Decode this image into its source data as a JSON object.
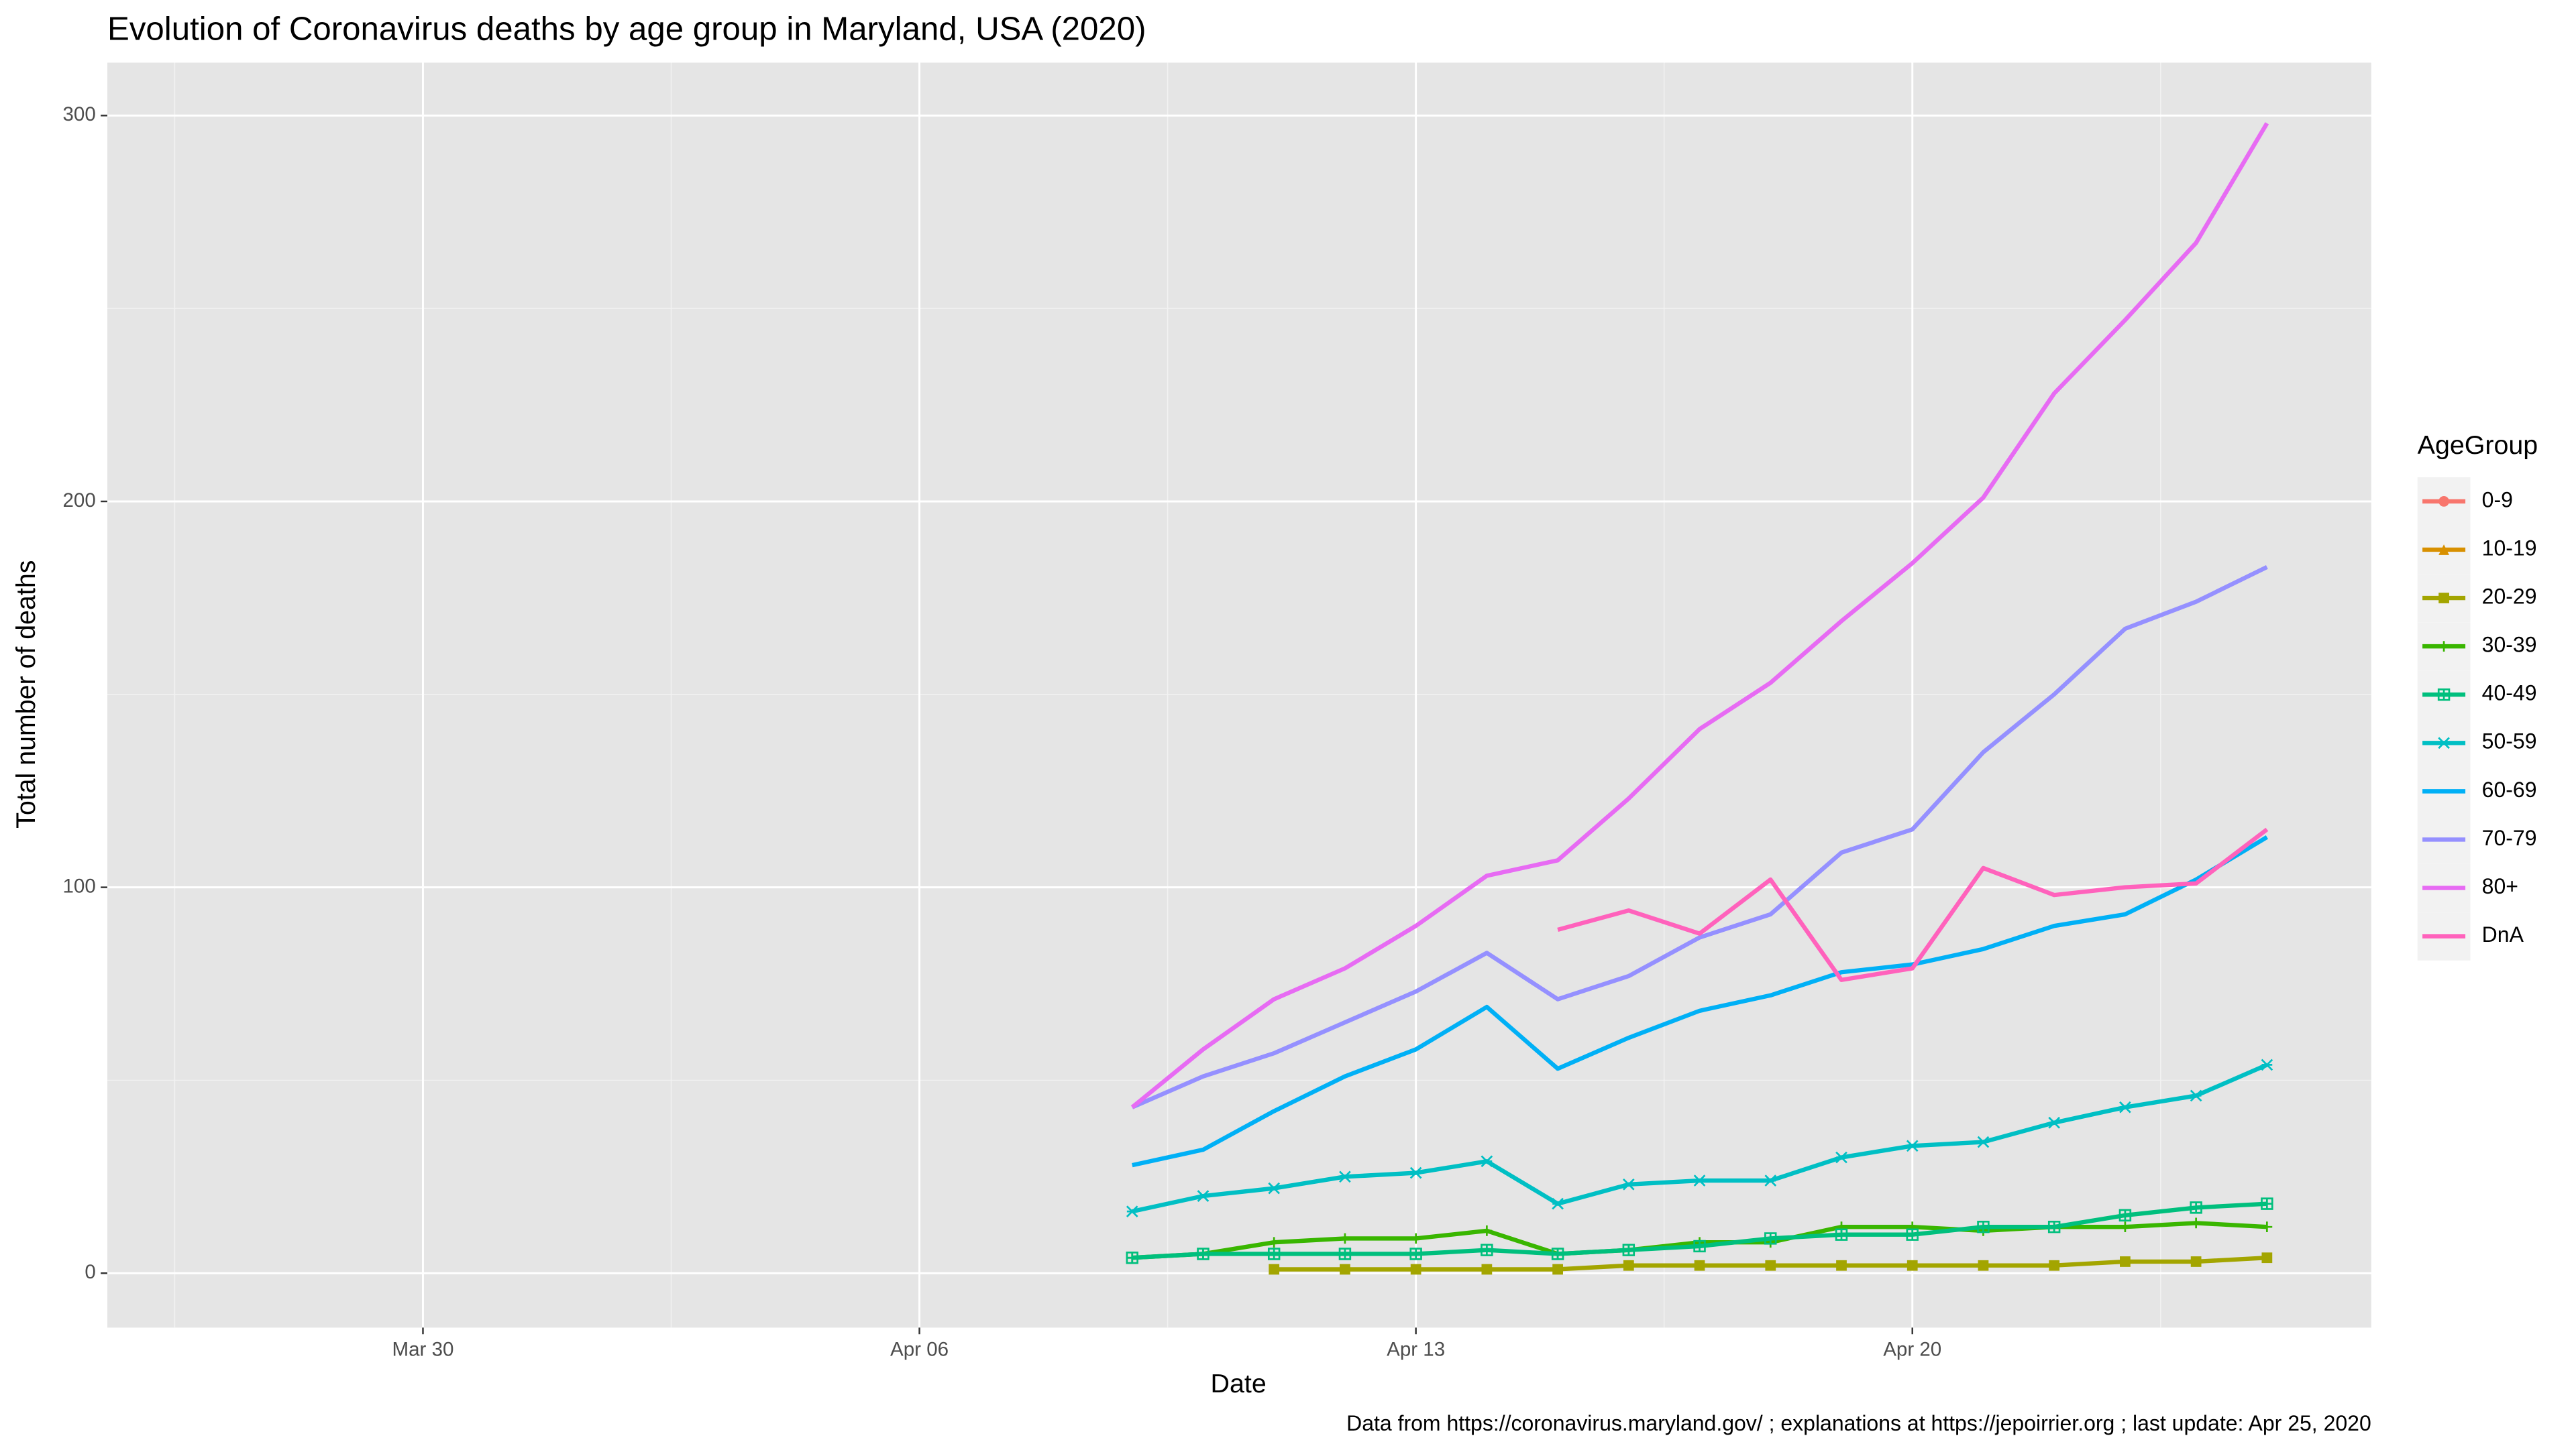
{
  "chart_data": {
    "type": "line",
    "title": "Evolution of Coronavirus deaths by age group in Maryland, USA (2020)",
    "x_label": "Date",
    "y_label": "Total number of deaths",
    "caption": "Data from https://coronavirus.maryland.gov/ ; explanations at https://jepoirrier.org ; last update: Apr 25, 2020",
    "legend_title": "AgeGroup",
    "legend_position": "right",
    "grid": true,
    "x": [
      "Apr 09",
      "Apr 10",
      "Apr 11",
      "Apr 12",
      "Apr 13",
      "Apr 14",
      "Apr 15",
      "Apr 16",
      "Apr 17",
      "Apr 18",
      "Apr 19",
      "Apr 20",
      "Apr 21",
      "Apr 22",
      "Apr 23",
      "Apr 24",
      "Apr 25"
    ],
    "xlim": [
      "Mar 25.55",
      "Apr 26.47"
    ],
    "xticks": [
      "Mar 30",
      "Apr 06",
      "Apr 13",
      "Apr 20"
    ],
    "ylim": [
      -14.1,
      313.7
    ],
    "yticks": [
      0,
      100,
      200,
      300
    ],
    "series": [
      {
        "name": "0-9",
        "color": "#F8766D",
        "shape": "circle",
        "values": [
          null,
          null,
          null,
          null,
          null,
          null,
          null,
          null,
          null,
          null,
          null,
          null,
          null,
          null,
          null,
          null,
          null
        ]
      },
      {
        "name": "10-19",
        "color": "#D89000",
        "shape": "triangle",
        "values": [
          null,
          null,
          null,
          null,
          null,
          null,
          null,
          null,
          null,
          null,
          null,
          null,
          null,
          null,
          null,
          null,
          null
        ]
      },
      {
        "name": "20-29",
        "color": "#A3A500",
        "shape": "square",
        "values": [
          null,
          null,
          1,
          1,
          1,
          1,
          1,
          2,
          2,
          2,
          2,
          2,
          2,
          2,
          3,
          3,
          4
        ]
      },
      {
        "name": "30-39",
        "color": "#39B600",
        "shape": "plus",
        "values": [
          4,
          5,
          8,
          9,
          9,
          11,
          5,
          6,
          8,
          8,
          12,
          12,
          11,
          12,
          12,
          13,
          12
        ]
      },
      {
        "name": "40-49",
        "color": "#00BF7D",
        "shape": "boxplus",
        "values": [
          4,
          5,
          5,
          5,
          5,
          6,
          5,
          6,
          7,
          9,
          10,
          10,
          12,
          12,
          15,
          17,
          18
        ]
      },
      {
        "name": "50-59",
        "color": "#00BFC4",
        "shape": "asterisk",
        "values": [
          16,
          20,
          22,
          25,
          26,
          29,
          18,
          23,
          24,
          24,
          30,
          33,
          34,
          39,
          43,
          46,
          54
        ]
      },
      {
        "name": "60-69",
        "color": "#00B0F6",
        "values": [
          28,
          32,
          42,
          51,
          58,
          69,
          53,
          61,
          68,
          72,
          78,
          80,
          84,
          90,
          93,
          102,
          113
        ]
      },
      {
        "name": "70-79",
        "color": "#9590FF",
        "values": [
          43,
          51,
          57,
          65,
          73,
          83,
          71,
          77,
          87,
          93,
          109,
          115,
          135,
          150,
          167,
          174,
          183
        ]
      },
      {
        "name": "80+",
        "color": "#E76BF3",
        "values": [
          43,
          58,
          71,
          79,
          90,
          103,
          107,
          123,
          141,
          153,
          169,
          184,
          201,
          228,
          247,
          267,
          298
        ]
      },
      {
        "name": "DnA",
        "color": "#FF62BC",
        "values": [
          null,
          null,
          null,
          null,
          null,
          null,
          89,
          94,
          88,
          102,
          76,
          79,
          105,
          98,
          100,
          101,
          115
        ]
      }
    ]
  }
}
